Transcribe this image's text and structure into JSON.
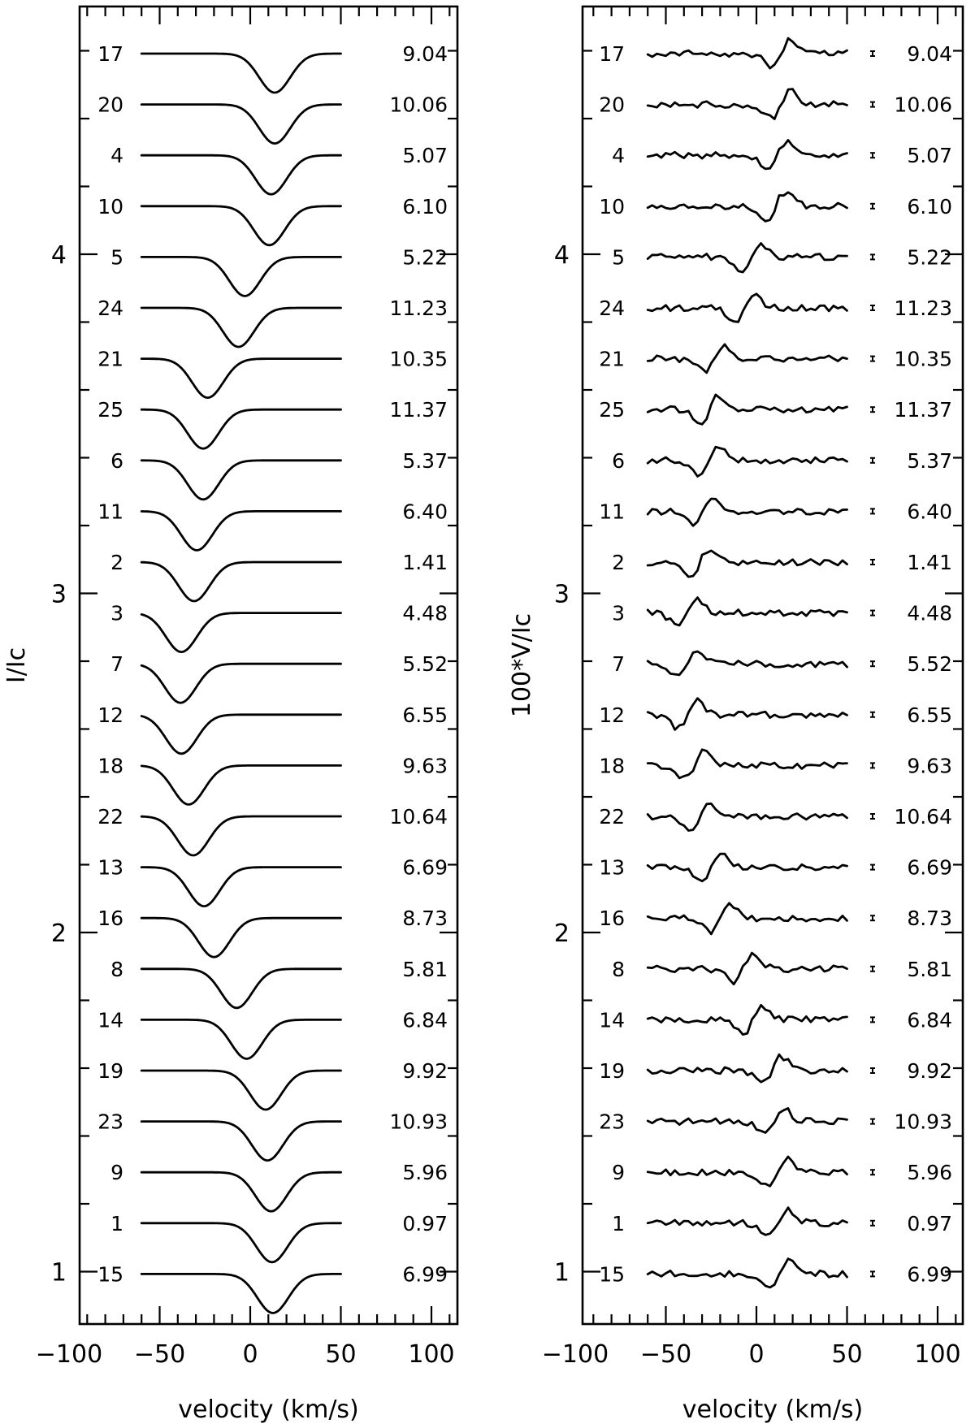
{
  "chart_data": [
    {
      "type": "line",
      "panel": "left",
      "xlabel": "velocity (km/s)",
      "ylabel": "I/Ic",
      "xlim": [
        -120,
        120
      ],
      "x_ticks": [
        "−100",
        "−50",
        "0",
        "50",
        "100"
      ],
      "y_ticks": [
        "1",
        "2",
        "3",
        "4"
      ],
      "spectra": [
        {
          "id": "17",
          "phase_label": "9.04",
          "center": 13.5
        },
        {
          "id": "20",
          "phase_label": "10.06",
          "center": 13.5
        },
        {
          "id": "4",
          "phase_label": "5.07",
          "center": 11.5
        },
        {
          "id": "10",
          "phase_label": "6.10",
          "center": 10.5
        },
        {
          "id": "5",
          "phase_label": "5.22",
          "center": -3.0
        },
        {
          "id": "24",
          "phase_label": "11.23",
          "center": -6.5
        },
        {
          "id": "21",
          "phase_label": "10.35",
          "center": -23.5
        },
        {
          "id": "25",
          "phase_label": "11.37",
          "center": -26.0
        },
        {
          "id": "6",
          "phase_label": "5.37",
          "center": -26.0
        },
        {
          "id": "11",
          "phase_label": "6.40",
          "center": -29.5
        },
        {
          "id": "2",
          "phase_label": "1.41",
          "center": -31.0
        },
        {
          "id": "3",
          "phase_label": "4.48",
          "center": -38.0
        },
        {
          "id": "7",
          "phase_label": "5.52",
          "center": -38.5
        },
        {
          "id": "12",
          "phase_label": "6.55",
          "center": -38.0
        },
        {
          "id": "18",
          "phase_label": "9.63",
          "center": -34.0
        },
        {
          "id": "22",
          "phase_label": "10.64",
          "center": -31.5
        },
        {
          "id": "13",
          "phase_label": "6.69",
          "center": -25.5
        },
        {
          "id": "16",
          "phase_label": "8.73",
          "center": -20.0
        },
        {
          "id": "8",
          "phase_label": "5.81",
          "center": -7.5
        },
        {
          "id": "14",
          "phase_label": "6.84",
          "center": -2.0
        },
        {
          "id": "19",
          "phase_label": "9.92",
          "center": 8.5
        },
        {
          "id": "23",
          "phase_label": "10.93",
          "center": 9.5
        },
        {
          "id": "9",
          "phase_label": "5.96",
          "center": 11.5
        },
        {
          "id": "1",
          "phase_label": "0.97",
          "center": 12.0
        },
        {
          "id": "15",
          "phase_label": "6.99",
          "center": 12.5
        }
      ]
    },
    {
      "type": "line",
      "panel": "right",
      "xlabel": "velocity (km/s)",
      "ylabel": "100*V/Ic",
      "xlim": [
        -120,
        120
      ],
      "x_ticks": [
        "−100",
        "−50",
        "0",
        "50",
        "100"
      ],
      "y_ticks": [
        "1",
        "2",
        "3",
        "4"
      ],
      "spectra": [
        {
          "id": "17",
          "phase_label": "9.04"
        },
        {
          "id": "20",
          "phase_label": "10.06"
        },
        {
          "id": "4",
          "phase_label": "5.07"
        },
        {
          "id": "10",
          "phase_label": "6.10"
        },
        {
          "id": "5",
          "phase_label": "5.22"
        },
        {
          "id": "24",
          "phase_label": "11.23"
        },
        {
          "id": "21",
          "phase_label": "10.35"
        },
        {
          "id": "25",
          "phase_label": "11.37"
        },
        {
          "id": "6",
          "phase_label": "5.37"
        },
        {
          "id": "11",
          "phase_label": "6.40"
        },
        {
          "id": "2",
          "phase_label": "1.41"
        },
        {
          "id": "3",
          "phase_label": "4.48"
        },
        {
          "id": "7",
          "phase_label": "5.52"
        },
        {
          "id": "12",
          "phase_label": "6.55"
        },
        {
          "id": "18",
          "phase_label": "9.63"
        },
        {
          "id": "22",
          "phase_label": "10.64"
        },
        {
          "id": "13",
          "phase_label": "6.69"
        },
        {
          "id": "16",
          "phase_label": "8.73"
        },
        {
          "id": "8",
          "phase_label": "5.81"
        },
        {
          "id": "14",
          "phase_label": "6.84"
        },
        {
          "id": "19",
          "phase_label": "9.92"
        },
        {
          "id": "23",
          "phase_label": "10.93"
        },
        {
          "id": "9",
          "phase_label": "5.96"
        },
        {
          "id": "1",
          "phase_label": "0.97"
        },
        {
          "id": "15",
          "phase_label": "6.99"
        }
      ]
    }
  ]
}
